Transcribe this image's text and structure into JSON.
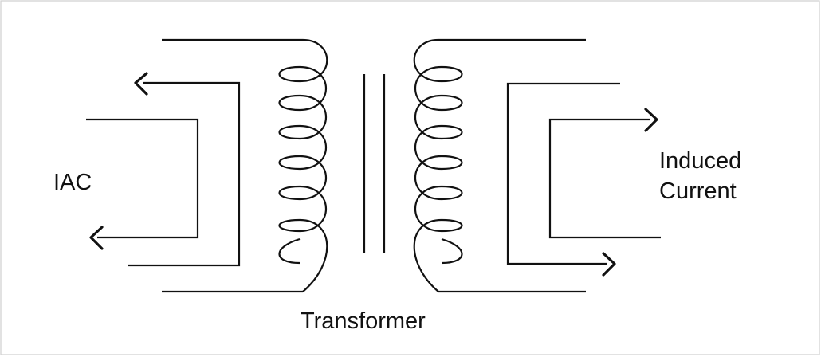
{
  "labels": {
    "left_source": "IAC",
    "right_output_line1": "Induced",
    "right_output_line2": "Current",
    "device": "Transformer"
  },
  "colors": {
    "ink": "#111111",
    "background": "#ffffff"
  },
  "components": {
    "primary_coil": "primary-coil",
    "secondary_coil": "secondary-coil",
    "core": "iron-core"
  }
}
